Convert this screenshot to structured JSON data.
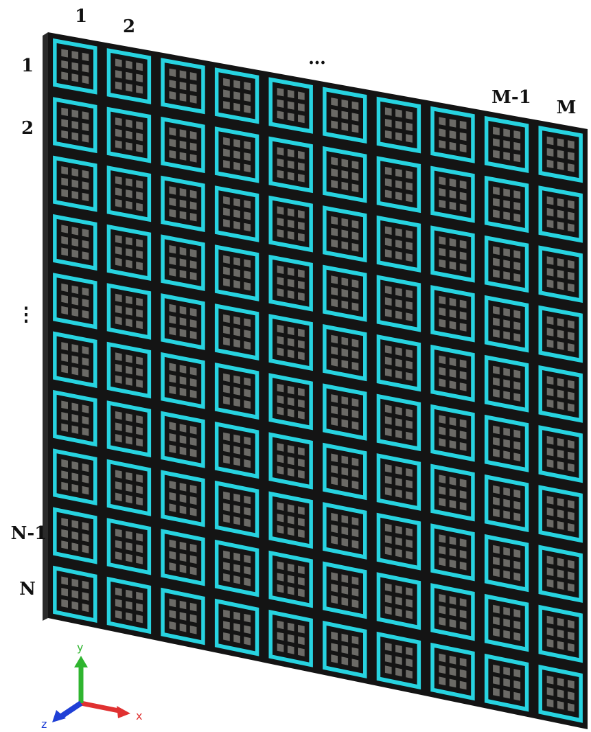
{
  "column_labels": [
    "1",
    "2",
    "…",
    "M-1",
    "M"
  ],
  "row_labels": [
    "1",
    "2",
    "⋮",
    "N-1",
    "N"
  ],
  "axes": {
    "x": "x",
    "y": "y",
    "z": "z"
  },
  "array": {
    "columns": 10,
    "rows": 10,
    "subcells_per_side": 3
  },
  "colors": {
    "background": "#ffffff",
    "board": "#141414",
    "ring": "#27d3e0",
    "pad": "#6b6a66",
    "axis_x": "#e03131",
    "axis_y": "#2fb52f",
    "axis_z": "#1f3fd6"
  }
}
